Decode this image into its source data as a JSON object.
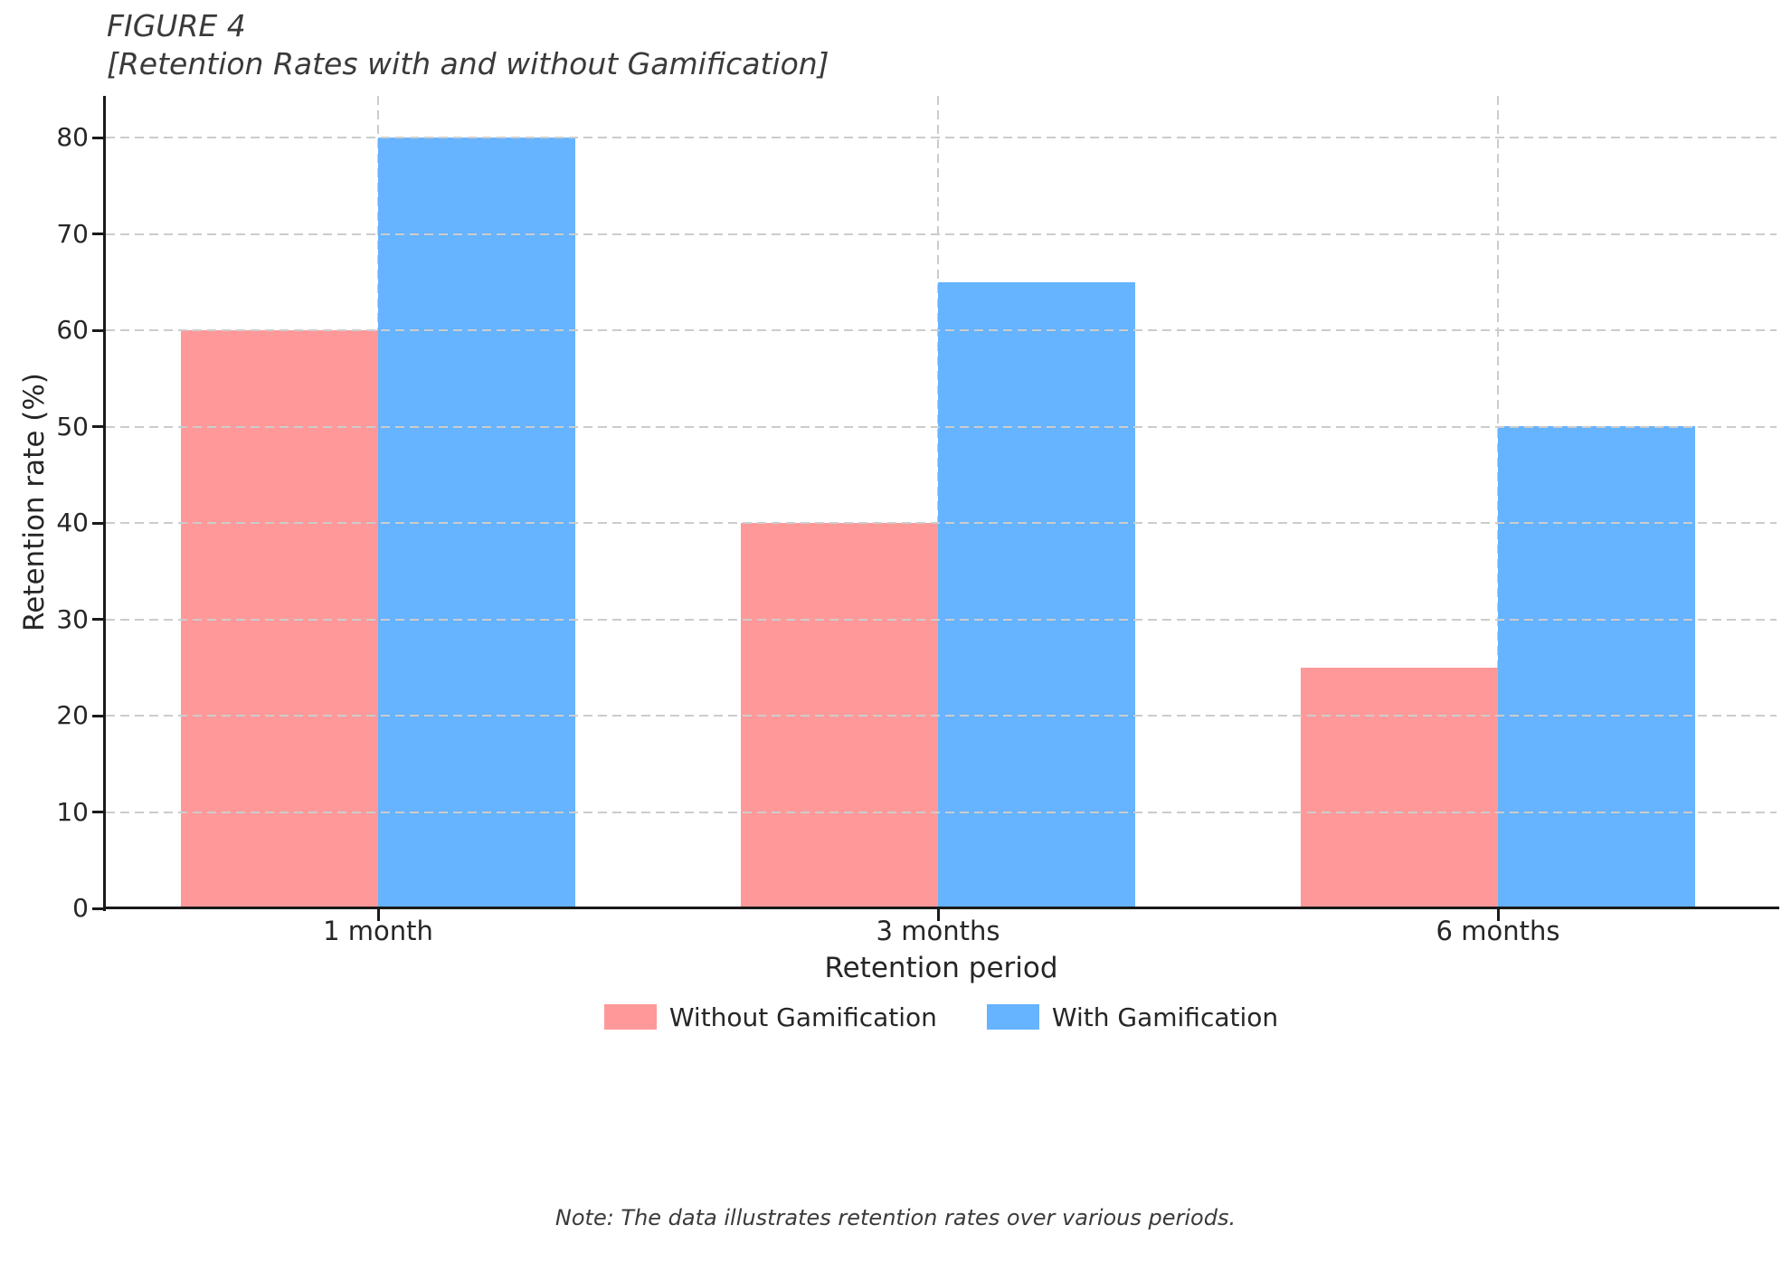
{
  "figure": {
    "title_line1": "FIGURE 4",
    "title_line2": "[Retention Rates with and without Gamification]",
    "note": "Note: The data illustrates retention rates over various periods."
  },
  "chart_data": {
    "type": "bar",
    "categories": [
      "1 month",
      "3 months",
      "6 months"
    ],
    "series": [
      {
        "name": "Without Gamification",
        "color": "#FF9999",
        "values": [
          60,
          40,
          25
        ]
      },
      {
        "name": "With Gamification",
        "color": "#66B3FF",
        "values": [
          80,
          65,
          50
        ]
      }
    ],
    "title": "FIGURE 4 [Retention Rates with and without Gamification]",
    "xlabel": "Retention period",
    "ylabel": "Retention rate (%)",
    "ylim": [
      0,
      84
    ],
    "yticks": [
      0,
      10,
      20,
      30,
      40,
      50,
      60,
      70,
      80
    ],
    "grid": "dashed, horizontal above bars and vertical at category centers",
    "legend_position": "lower center, outside plot"
  }
}
